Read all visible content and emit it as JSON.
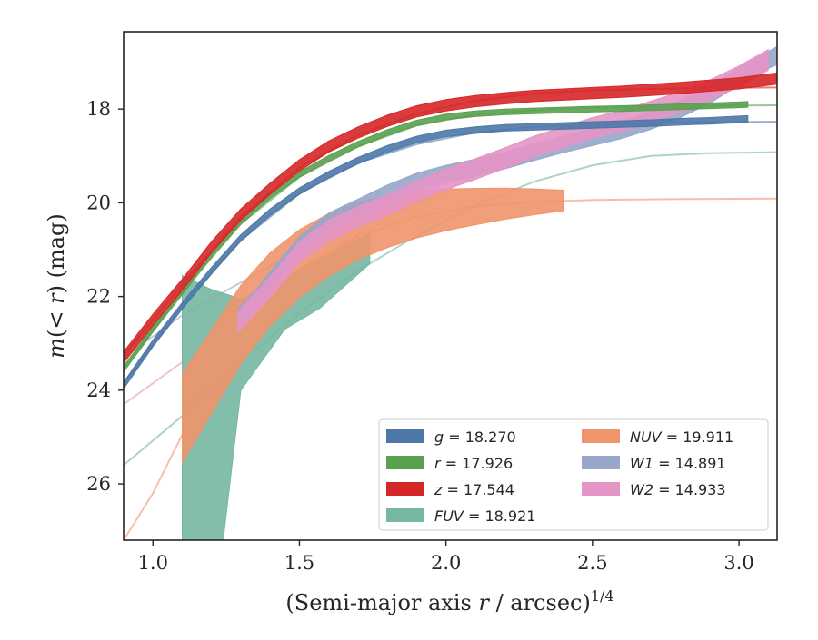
{
  "chart_data": {
    "type": "line",
    "xlabel_prefix": "(Semi-major axis ",
    "xlabel_var": "r",
    "xlabel_mid": " / arcsec)",
    "xlabel_sup": "1/4",
    "ylabel_m": "m",
    "ylabel_mid": "(< ",
    "ylabel_r": "r",
    "ylabel_suffix": ") (mag)",
    "xlim": [
      0.9,
      3.13
    ],
    "ylim": [
      27.2,
      16.35
    ],
    "y_inverted": true,
    "x_ticks": [
      "1.0",
      "1.5",
      "2.0",
      "2.5",
      "3.0"
    ],
    "x_tick_values": [
      1.0,
      1.5,
      2.0,
      2.5,
      3.0
    ],
    "y_ticks": [
      "18",
      "20",
      "22",
      "24",
      "26"
    ],
    "y_tick_values": [
      18,
      20,
      22,
      24,
      26
    ],
    "grid": false,
    "legend_position": "lower-right",
    "legend": [
      {
        "var": "g",
        "text": " = 18.270",
        "color": "#4c78a8"
      },
      {
        "var": "r",
        "text": " = 17.926",
        "color": "#59a14f"
      },
      {
        "var": "z",
        "text": " = 17.544",
        "color": "#d62728"
      },
      {
        "var": "FUV",
        "text": " = 18.921",
        "color": "#76b7a2"
      },
      {
        "var": "NUV",
        "text": " = 19.911",
        "color": "#f0956b"
      },
      {
        "var": "W1",
        "text": " = 14.891",
        "color": "#97a6c9"
      },
      {
        "var": "W2",
        "text": " = 14.933",
        "color": "#e495c6"
      }
    ],
    "series": [
      {
        "name": "g",
        "color": "#4c78a8",
        "data": [
          [
            0.9,
            23.9
          ],
          [
            1.0,
            23.0
          ],
          [
            1.1,
            22.2
          ],
          [
            1.2,
            21.45
          ],
          [
            1.3,
            20.75
          ],
          [
            1.4,
            20.2
          ],
          [
            1.5,
            19.75
          ],
          [
            1.6,
            19.4
          ],
          [
            1.7,
            19.1
          ],
          [
            1.8,
            18.85
          ],
          [
            1.9,
            18.65
          ],
          [
            2.0,
            18.52
          ],
          [
            2.1,
            18.45
          ],
          [
            2.2,
            18.4
          ],
          [
            2.3,
            18.38
          ],
          [
            2.4,
            18.36
          ],
          [
            2.5,
            18.34
          ],
          [
            2.6,
            18.32
          ],
          [
            2.7,
            18.3
          ],
          [
            2.8,
            18.27
          ],
          [
            2.9,
            18.25
          ],
          [
            3.0,
            18.22
          ],
          [
            3.03,
            18.21
          ]
        ],
        "band_halfwidth": 0.07,
        "model": [
          [
            0.9,
            23.85
          ],
          [
            1.1,
            22.2
          ],
          [
            1.3,
            20.8
          ],
          [
            1.5,
            19.8
          ],
          [
            1.7,
            19.15
          ],
          [
            1.9,
            18.75
          ],
          [
            2.1,
            18.5
          ],
          [
            2.3,
            18.38
          ],
          [
            2.5,
            18.32
          ],
          [
            2.7,
            18.29
          ],
          [
            2.9,
            18.28
          ],
          [
            3.13,
            18.27
          ]
        ]
      },
      {
        "name": "r",
        "color": "#59a14f",
        "data": [
          [
            0.9,
            23.55
          ],
          [
            1.0,
            22.7
          ],
          [
            1.1,
            21.9
          ],
          [
            1.2,
            21.1
          ],
          [
            1.3,
            20.4
          ],
          [
            1.4,
            19.85
          ],
          [
            1.5,
            19.4
          ],
          [
            1.6,
            19.05
          ],
          [
            1.7,
            18.75
          ],
          [
            1.8,
            18.5
          ],
          [
            1.9,
            18.3
          ],
          [
            2.0,
            18.17
          ],
          [
            2.1,
            18.1
          ],
          [
            2.2,
            18.06
          ],
          [
            2.3,
            18.04
          ],
          [
            2.4,
            18.02
          ],
          [
            2.5,
            18.0
          ],
          [
            2.6,
            17.99
          ],
          [
            2.7,
            17.97
          ],
          [
            2.8,
            17.95
          ],
          [
            2.9,
            17.93
          ],
          [
            3.0,
            17.91
          ],
          [
            3.03,
            17.9
          ]
        ],
        "band_halfwidth": 0.06,
        "model": [
          [
            0.9,
            23.5
          ],
          [
            1.1,
            21.9
          ],
          [
            1.3,
            20.45
          ],
          [
            1.5,
            19.45
          ],
          [
            1.7,
            18.8
          ],
          [
            1.9,
            18.35
          ],
          [
            2.1,
            18.12
          ],
          [
            2.3,
            18.02
          ],
          [
            2.5,
            17.97
          ],
          [
            2.7,
            17.94
          ],
          [
            2.9,
            17.93
          ],
          [
            3.13,
            17.92
          ]
        ]
      },
      {
        "name": "z",
        "color": "#d62728",
        "data": [
          [
            0.9,
            23.3
          ],
          [
            1.0,
            22.5
          ],
          [
            1.1,
            21.75
          ],
          [
            1.2,
            20.95
          ],
          [
            1.3,
            20.25
          ],
          [
            1.4,
            19.7
          ],
          [
            1.5,
            19.2
          ],
          [
            1.6,
            18.8
          ],
          [
            1.7,
            18.5
          ],
          [
            1.8,
            18.25
          ],
          [
            1.9,
            18.05
          ],
          [
            2.0,
            17.92
          ],
          [
            2.1,
            17.83
          ],
          [
            2.2,
            17.77
          ],
          [
            2.3,
            17.72
          ],
          [
            2.4,
            17.69
          ],
          [
            2.5,
            17.66
          ],
          [
            2.6,
            17.63
          ],
          [
            2.7,
            17.59
          ],
          [
            2.8,
            17.55
          ],
          [
            2.9,
            17.5
          ],
          [
            3.0,
            17.45
          ],
          [
            3.13,
            17.35
          ]
        ],
        "band_halfwidth": 0.12,
        "model": [
          [
            0.9,
            23.25
          ],
          [
            1.1,
            21.75
          ],
          [
            1.3,
            20.3
          ],
          [
            1.5,
            19.25
          ],
          [
            1.7,
            18.55
          ],
          [
            1.9,
            18.1
          ],
          [
            2.1,
            17.82
          ],
          [
            2.3,
            17.67
          ],
          [
            2.5,
            17.6
          ],
          [
            2.7,
            17.57
          ],
          [
            2.9,
            17.55
          ],
          [
            3.13,
            17.54
          ]
        ]
      },
      {
        "name": "FUV",
        "color": "#76b7a2",
        "band_upper": [
          [
            1.1,
            21.55
          ],
          [
            1.2,
            21.85
          ],
          [
            1.3,
            22.05
          ],
          [
            1.45,
            21.6
          ],
          [
            1.6,
            21.1
          ],
          [
            1.74,
            20.65
          ]
        ],
        "band_lower": [
          [
            1.1,
            27.2
          ],
          [
            1.24,
            27.2
          ],
          [
            1.3,
            24.0
          ],
          [
            1.45,
            22.7
          ],
          [
            1.57,
            22.25
          ],
          [
            1.74,
            21.3
          ]
        ],
        "model": [
          [
            0.9,
            25.6
          ],
          [
            1.1,
            24.55
          ],
          [
            1.3,
            23.4
          ],
          [
            1.5,
            22.35
          ],
          [
            1.7,
            21.45
          ],
          [
            1.9,
            20.7
          ],
          [
            2.1,
            20.05
          ],
          [
            2.3,
            19.55
          ],
          [
            2.5,
            19.2
          ],
          [
            2.7,
            19.0
          ],
          [
            2.9,
            18.94
          ],
          [
            3.13,
            18.92
          ]
        ]
      },
      {
        "name": "NUV",
        "color": "#f0956b",
        "data": [
          [
            1.1,
            24.6
          ],
          [
            1.2,
            23.6
          ],
          [
            1.3,
            22.6
          ],
          [
            1.4,
            21.85
          ],
          [
            1.5,
            21.3
          ],
          [
            1.6,
            20.9
          ],
          [
            1.7,
            20.6
          ],
          [
            1.8,
            20.4
          ],
          [
            1.9,
            20.25
          ],
          [
            2.0,
            20.15
          ],
          [
            2.1,
            20.08
          ],
          [
            2.2,
            20.02
          ],
          [
            2.3,
            19.98
          ],
          [
            2.4,
            19.95
          ]
        ],
        "band_halfwidth_start": 0.95,
        "band_halfwidth_end": 0.22,
        "model": [
          [
            0.9,
            27.2
          ],
          [
            1.0,
            26.2
          ],
          [
            1.1,
            24.95
          ],
          [
            1.2,
            23.7
          ],
          [
            1.3,
            22.7
          ],
          [
            1.5,
            21.4
          ],
          [
            1.7,
            20.7
          ],
          [
            1.9,
            20.3
          ],
          [
            2.1,
            20.07
          ],
          [
            2.3,
            19.98
          ],
          [
            2.5,
            19.94
          ],
          [
            2.8,
            19.92
          ],
          [
            3.13,
            19.91
          ]
        ]
      },
      {
        "name": "W1",
        "color": "#97a6c9",
        "data": [
          [
            1.29,
            22.45
          ],
          [
            1.35,
            22.05
          ],
          [
            1.4,
            21.65
          ],
          [
            1.5,
            20.9
          ],
          [
            1.6,
            20.4
          ],
          [
            1.7,
            20.1
          ],
          [
            1.8,
            19.8
          ],
          [
            1.9,
            19.55
          ],
          [
            2.0,
            19.38
          ],
          [
            2.1,
            19.25
          ],
          [
            2.2,
            19.1
          ],
          [
            2.3,
            18.92
          ],
          [
            2.4,
            18.75
          ],
          [
            2.5,
            18.6
          ],
          [
            2.6,
            18.45
          ],
          [
            2.7,
            18.25
          ],
          [
            2.8,
            18.0
          ],
          [
            2.9,
            17.7
          ],
          [
            3.0,
            17.3
          ],
          [
            3.13,
            16.85
          ]
        ],
        "band_halfwidth": 0.18,
        "model": [
          [
            0.9,
            23.3
          ],
          [
            1.1,
            22.4
          ],
          [
            1.3,
            21.7
          ],
          [
            1.5,
            21.0
          ],
          [
            1.7,
            20.35
          ],
          [
            1.9,
            19.8
          ],
          [
            2.1,
            19.35
          ],
          [
            2.3,
            18.95
          ],
          [
            2.5,
            18.55
          ],
          [
            2.7,
            18.1
          ],
          [
            2.9,
            17.6
          ],
          [
            3.13,
            17.05
          ]
        ]
      },
      {
        "name": "W2",
        "color": "#e495c6",
        "data": [
          [
            1.29,
            22.55
          ],
          [
            1.35,
            22.15
          ],
          [
            1.4,
            21.8
          ],
          [
            1.5,
            21.05
          ],
          [
            1.6,
            20.6
          ],
          [
            1.7,
            20.3
          ],
          [
            1.8,
            20.05
          ],
          [
            1.9,
            19.75
          ],
          [
            2.0,
            19.5
          ],
          [
            2.1,
            19.28
          ],
          [
            2.2,
            19.05
          ],
          [
            2.3,
            18.8
          ],
          [
            2.4,
            18.6
          ],
          [
            2.5,
            18.4
          ],
          [
            2.6,
            18.25
          ],
          [
            2.7,
            18.05
          ],
          [
            2.8,
            17.85
          ],
          [
            2.9,
            17.6
          ],
          [
            3.0,
            17.3
          ],
          [
            3.1,
            16.95
          ]
        ],
        "band_halfwidth": 0.22,
        "model": [
          [
            0.9,
            24.3
          ],
          [
            1.1,
            23.4
          ],
          [
            1.3,
            22.5
          ],
          [
            1.5,
            21.55
          ],
          [
            1.7,
            20.7
          ],
          [
            1.9,
            20.0
          ],
          [
            2.1,
            19.45
          ],
          [
            2.3,
            18.95
          ],
          [
            2.5,
            18.5
          ],
          [
            2.7,
            18.05
          ],
          [
            2.9,
            17.6
          ],
          [
            3.13,
            17.05
          ]
        ]
      }
    ]
  }
}
